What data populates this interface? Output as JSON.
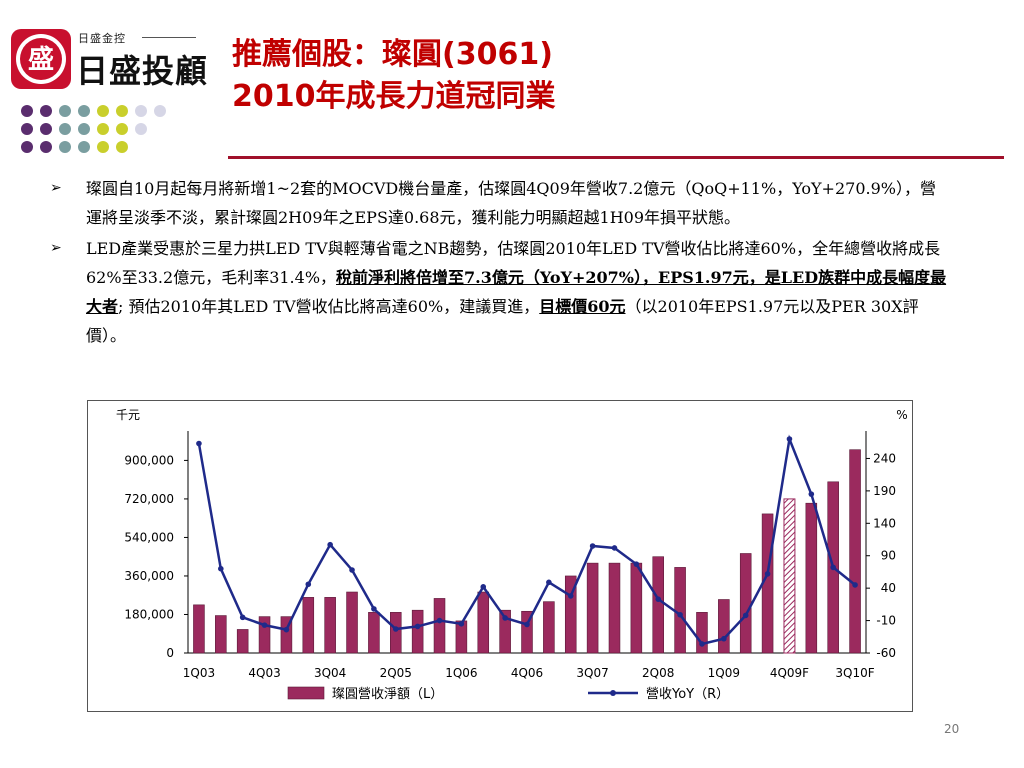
{
  "header": {
    "logo_mark": "盛",
    "logo_sub": "日盛金控",
    "logo_main": "日盛投顧",
    "title_line1": "推薦個股：璨圓(3061)",
    "title_line2": "2010年成長力道冠同業"
  },
  "bullets": [
    {
      "marker": "➢",
      "parts": [
        {
          "text": "璨圓自10月起每月將新增1~2套的MOCVD機台量產，估璨圓4Q09年營收7.2億元（QoQ+11%，YoY+270.9%），營運將呈淡季不淡，累計璨圓2H09年之EPS達0.68元，獲利能力明顯超越1H09年損平狀態。",
          "bold": false
        }
      ]
    },
    {
      "marker": "➢",
      "parts": [
        {
          "text": "LED產業受惠於三星力拱LED TV與輕薄省電之NB趨勢，估璨圓2010年LED TV營收佔比將達60%，全年總營收將成長62%至33.2億元，毛利率31.4%，",
          "bold": false
        },
        {
          "text": "稅前淨利將倍增至7.3億元（YoY+207%），EPS1.97元，是LED族群中成長幅度最大者",
          "bold": true
        },
        {
          "text": "; 預估2010年其LED TV營收佔比將高達60%，建議買進，",
          "bold": false
        },
        {
          "text": "目標價60元",
          "bold": true
        },
        {
          "text": "（以2010年EPS1.97元以及PER 30X評價）。",
          "bold": false
        }
      ]
    }
  ],
  "chart_data": {
    "type": "bar",
    "left_unit": "千元",
    "right_unit": "%",
    "categories": [
      "1Q03",
      "2Q03",
      "3Q03",
      "4Q03",
      "1Q04",
      "2Q04",
      "3Q04",
      "4Q04",
      "1Q05",
      "2Q05",
      "3Q05",
      "4Q05",
      "1Q06",
      "2Q06",
      "3Q06",
      "4Q06",
      "1Q07",
      "2Q07",
      "3Q07",
      "4Q07",
      "1Q08",
      "2Q08",
      "3Q08",
      "4Q08",
      "1Q09",
      "2Q09",
      "3Q09",
      "4Q09F",
      "1Q10F",
      "2Q10F",
      "3Q10F"
    ],
    "x_tick_labels": [
      "1Q03",
      "4Q03",
      "3Q04",
      "2Q05",
      "1Q06",
      "4Q06",
      "3Q07",
      "2Q08",
      "1Q09",
      "4Q09F",
      "3Q10F"
    ],
    "x_tick_every": 3,
    "left_ylim": [
      0,
      1000000
    ],
    "left_ticks": [
      0,
      180000,
      360000,
      540000,
      720000,
      900000
    ],
    "left_tick_labels": [
      "0",
      "180,000",
      "360,000",
      "540,000",
      "720,000",
      "900,000"
    ],
    "right_ylim": [
      -60,
      270
    ],
    "right_ticks": [
      -60,
      -10,
      40,
      90,
      140,
      190,
      240
    ],
    "right_tick_labels": [
      "-60",
      "-10",
      "40",
      "90",
      "140",
      "190",
      "240"
    ],
    "series": [
      {
        "name": "璨圓營收淨額（L）",
        "axis": "left",
        "type": "bar",
        "color": "#9b2a5e",
        "hatched_index": 27,
        "values": [
          225000,
          175000,
          110000,
          170000,
          170000,
          260000,
          260000,
          285000,
          190000,
          190000,
          200000,
          255000,
          150000,
          285000,
          200000,
          195000,
          240000,
          360000,
          420000,
          420000,
          420000,
          450000,
          400000,
          190000,
          250000,
          465000,
          650000,
          720000,
          700000,
          800000,
          950000
        ]
      },
      {
        "name": "營收YoY（R）",
        "axis": "right",
        "type": "line",
        "color": "#1f2a8a",
        "values": [
          263,
          70,
          -5,
          -17,
          -24,
          46,
          107,
          68,
          8,
          -23,
          -19,
          -10,
          -15,
          42,
          -6,
          -16,
          49,
          28,
          105,
          102,
          77,
          23,
          -1,
          -46,
          -38,
          -2,
          62,
          270,
          185,
          72,
          45
        ]
      }
    ],
    "legend_position": "bottom",
    "grid": false
  },
  "page_number": "20"
}
